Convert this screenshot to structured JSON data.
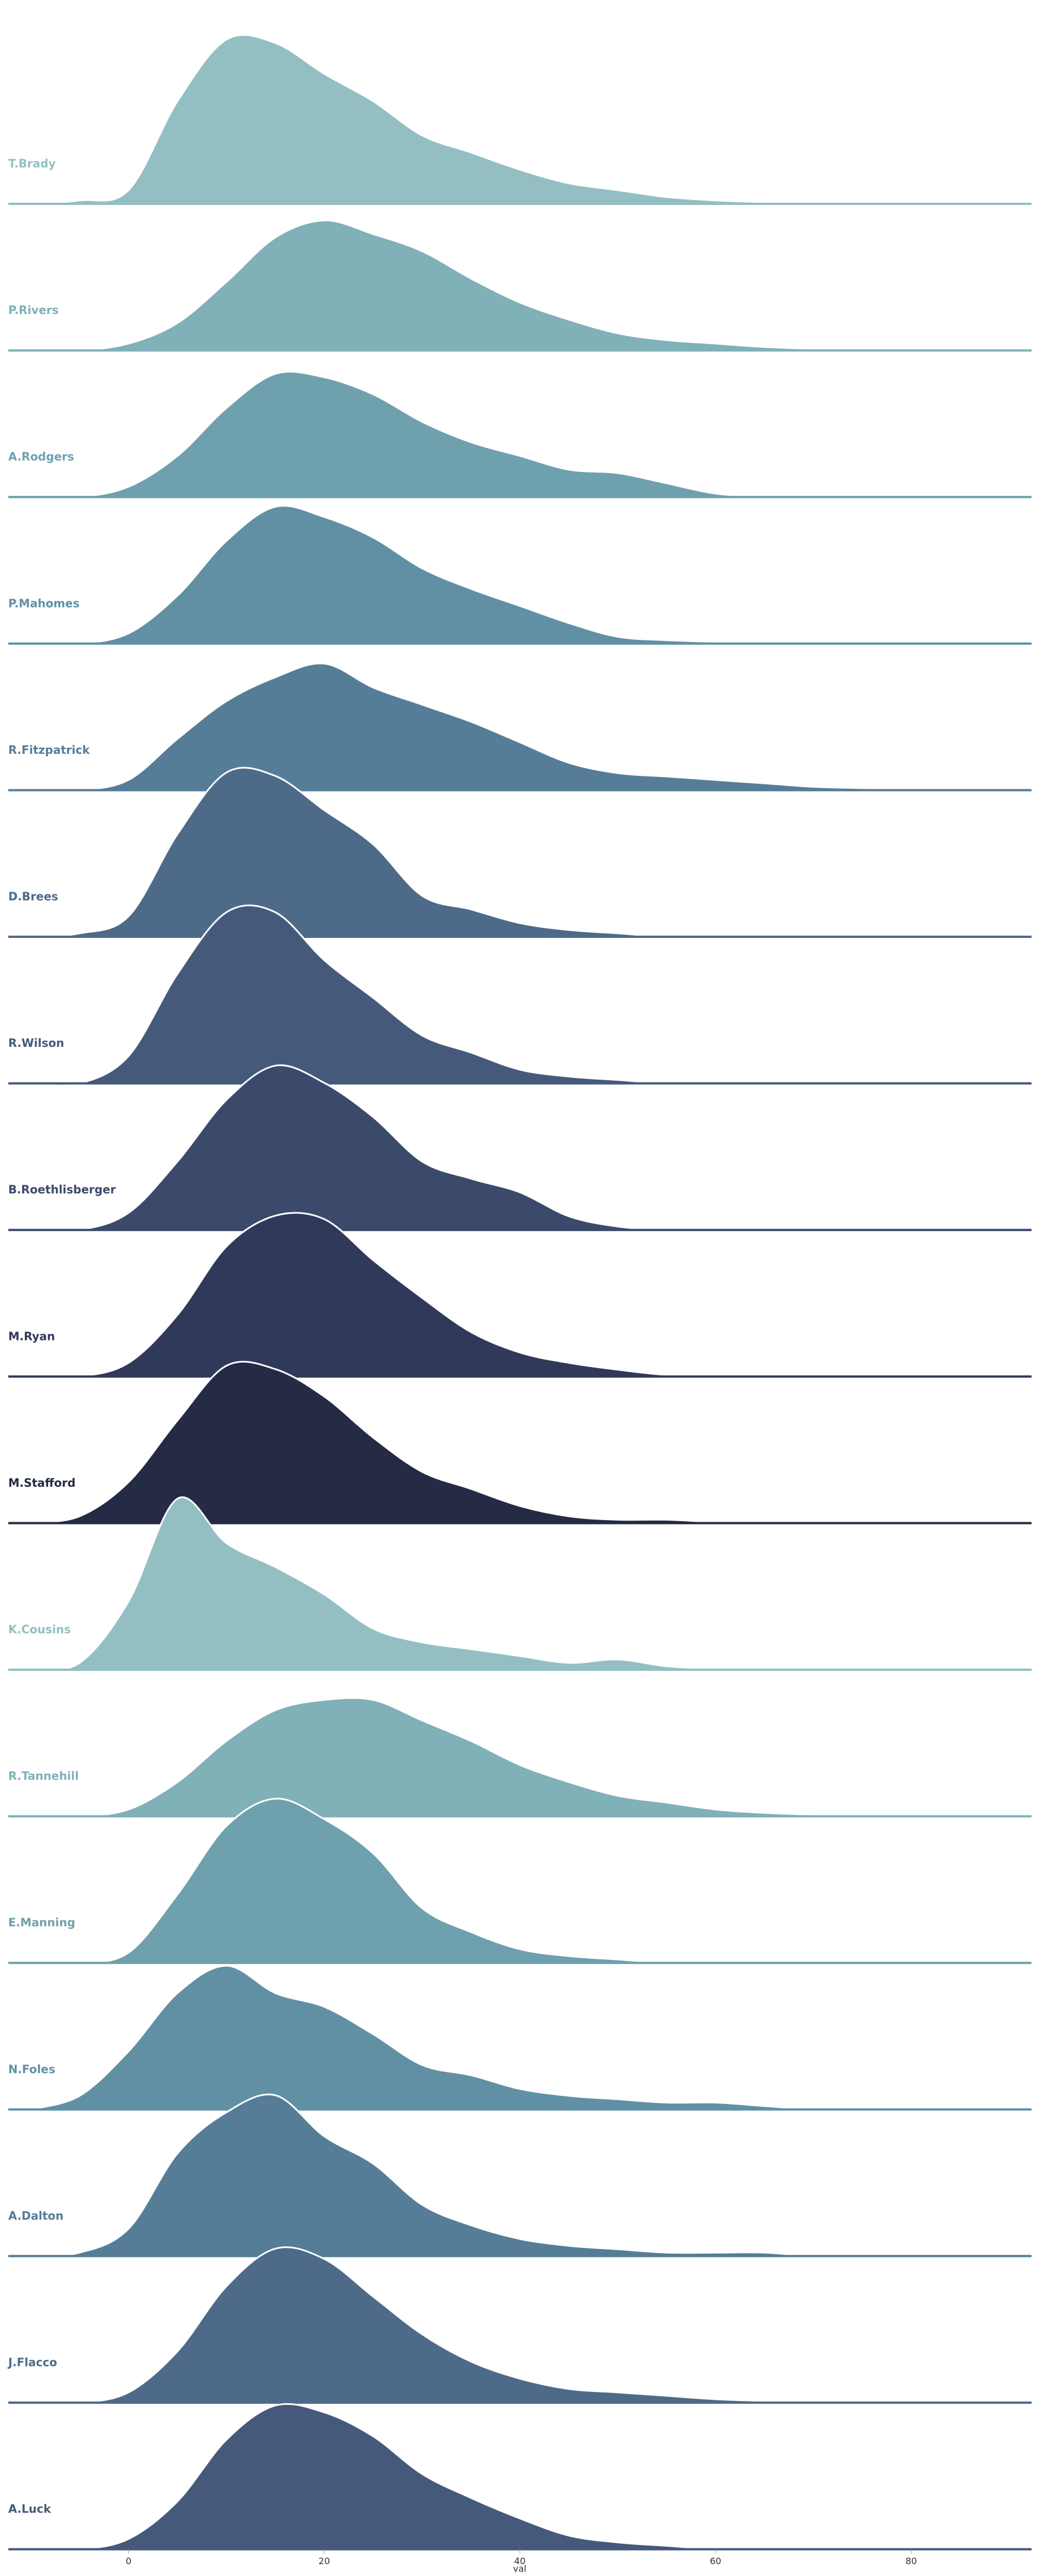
{
  "chart_data": {
    "type": "ridgeline",
    "xlabel": "val",
    "xlim": [
      -12.3,
      92.3
    ],
    "xticks": [
      0,
      20,
      40,
      60,
      80
    ],
    "ylim": [
      0,
      0.05
    ],
    "x": [
      -10,
      -5,
      0,
      5,
      10,
      15,
      20,
      25,
      30,
      35,
      40,
      45,
      50,
      55,
      60,
      65,
      70,
      75,
      80,
      85,
      90
    ],
    "series": [
      {
        "name": "T.Brady",
        "color": "#93bfc3",
        "values": [
          0,
          0.001,
          0.004,
          0.03,
          0.048,
          0.047,
          0.038,
          0.03,
          0.02,
          0.015,
          0.01,
          0.006,
          0.004,
          0.002,
          0.001,
          0.0005,
          0,
          0,
          0,
          0,
          0
        ]
      },
      {
        "name": "P.Rivers",
        "color": "#80b0b8",
        "values": [
          0,
          0,
          0.002,
          0.008,
          0.02,
          0.033,
          0.038,
          0.034,
          0.029,
          0.021,
          0.014,
          0.009,
          0.005,
          0.003,
          0.002,
          0.001,
          0.0005,
          0.0003,
          0.0002,
          0.0001,
          0
        ]
      },
      {
        "name": "A.Rodgers",
        "color": "#6fa0ae",
        "values": [
          0,
          0,
          0.003,
          0.012,
          0.026,
          0.036,
          0.035,
          0.03,
          0.022,
          0.016,
          0.012,
          0.008,
          0.007,
          0.004,
          0.001,
          0.0003,
          0,
          0,
          0,
          0,
          0
        ]
      },
      {
        "name": "P.Mahomes",
        "color": "#6190a5",
        "values": [
          0,
          0,
          0.003,
          0.014,
          0.03,
          0.04,
          0.037,
          0.031,
          0.022,
          0.016,
          0.011,
          0.006,
          0.002,
          0.001,
          0.0005,
          0,
          0,
          0,
          0,
          0,
          0
        ]
      },
      {
        "name": "R.Fitzpatrick",
        "color": "#567d98",
        "values": [
          0,
          0,
          0.003,
          0.015,
          0.026,
          0.033,
          0.037,
          0.03,
          0.025,
          0.02,
          0.014,
          0.008,
          0.005,
          0.004,
          0.003,
          0.002,
          0.001,
          0.0006,
          0.0003,
          0.0001,
          0
        ]
      },
      {
        "name": "D.Brees",
        "color": "#4d6b89",
        "values": [
          0,
          0.001,
          0.006,
          0.03,
          0.048,
          0.047,
          0.037,
          0.027,
          0.012,
          0.008,
          0.004,
          0.002,
          0.001,
          0,
          0,
          0,
          0,
          0,
          0,
          0,
          0
        ]
      },
      {
        "name": "R.Wilson",
        "color": "#455a7b",
        "values": [
          0,
          0,
          0.008,
          0.032,
          0.05,
          0.05,
          0.036,
          0.025,
          0.014,
          0.009,
          0.004,
          0.002,
          0.001,
          0,
          0,
          0,
          0,
          0,
          0,
          0,
          0
        ]
      },
      {
        "name": "B.Roethlisberger",
        "color": "#3b4a6b",
        "values": [
          0,
          0,
          0.005,
          0.02,
          0.038,
          0.048,
          0.043,
          0.033,
          0.02,
          0.015,
          0.011,
          0.004,
          0.001,
          0,
          0,
          0,
          0,
          0,
          0,
          0,
          0
        ]
      },
      {
        "name": "M.Ryan",
        "color": "#31395a",
        "values": [
          0,
          0,
          0.004,
          0.018,
          0.038,
          0.047,
          0.046,
          0.034,
          0.023,
          0.013,
          0.007,
          0.004,
          0.002,
          0.0005,
          0.0005,
          0.0002,
          0,
          0,
          0,
          0,
          0
        ]
      },
      {
        "name": "M.Stafford",
        "color": "#252a45",
        "values": [
          0,
          0.002,
          0.012,
          0.03,
          0.046,
          0.045,
          0.037,
          0.025,
          0.015,
          0.01,
          0.005,
          0.002,
          0.001,
          0.001,
          0.0003,
          0,
          0,
          0,
          0,
          0,
          0
        ]
      },
      {
        "name": "K.Cousins",
        "color": "#93bfc3",
        "values": [
          0,
          0.002,
          0.02,
          0.05,
          0.037,
          0.03,
          0.022,
          0.012,
          0.008,
          0.006,
          0.004,
          0.002,
          0.003,
          0.001,
          0.0003,
          0,
          0,
          0,
          0,
          0,
          0
        ]
      },
      {
        "name": "R.Tannehill",
        "color": "#80b0b8",
        "values": [
          0,
          0,
          0.002,
          0.01,
          0.022,
          0.031,
          0.034,
          0.034,
          0.028,
          0.022,
          0.015,
          0.01,
          0.006,
          0.004,
          0.002,
          0.001,
          0.0005,
          0.0003,
          0.0002,
          0,
          0
        ]
      },
      {
        "name": "E.Manning",
        "color": "#6fa0ae",
        "values": [
          0,
          0,
          0.003,
          0.02,
          0.04,
          0.048,
          0.042,
          0.032,
          0.016,
          0.009,
          0.004,
          0.002,
          0.001,
          0,
          0,
          0,
          0,
          0,
          0,
          0,
          0
        ]
      },
      {
        "name": "N.Foles",
        "color": "#6190a5",
        "values": [
          0,
          0.004,
          0.017,
          0.034,
          0.042,
          0.034,
          0.03,
          0.022,
          0.013,
          0.01,
          0.006,
          0.004,
          0.003,
          0.002,
          0.002,
          0.001,
          0,
          0,
          0,
          0,
          0
        ]
      },
      {
        "name": "A.Dalton",
        "color": "#567d98",
        "values": [
          0,
          0.001,
          0.008,
          0.03,
          0.042,
          0.047,
          0.035,
          0.027,
          0.015,
          0.009,
          0.005,
          0.003,
          0.002,
          0.001,
          0.001,
          0.001,
          0,
          0,
          0,
          0,
          0
        ]
      },
      {
        "name": "J.Flacco",
        "color": "#4d6b89",
        "values": [
          0,
          0,
          0.003,
          0.015,
          0.034,
          0.045,
          0.042,
          0.031,
          0.02,
          0.012,
          0.007,
          0.004,
          0.003,
          0.002,
          0.001,
          0.0005,
          0,
          0,
          0,
          0,
          0
        ]
      },
      {
        "name": "A.Luck",
        "color": "#455a7b",
        "values": [
          0,
          0,
          0.003,
          0.014,
          0.032,
          0.042,
          0.04,
          0.033,
          0.022,
          0.015,
          0.009,
          0.004,
          0.002,
          0.001,
          0,
          0,
          0,
          0,
          0,
          0,
          0
        ]
      }
    ]
  }
}
